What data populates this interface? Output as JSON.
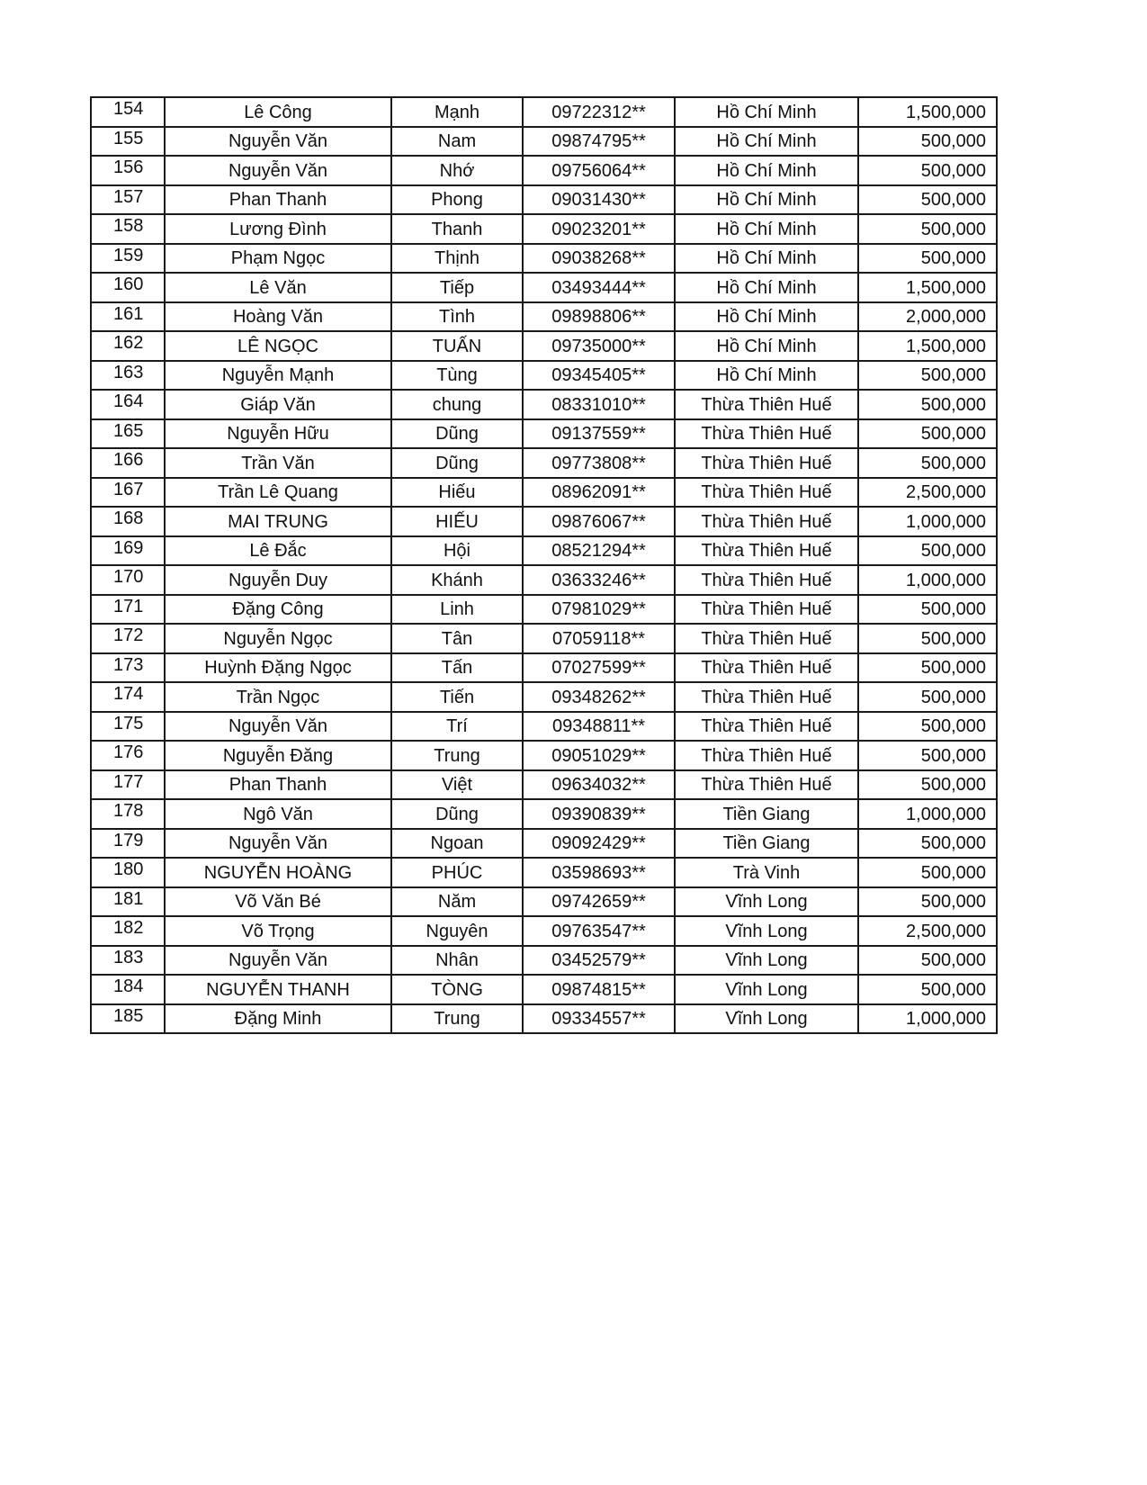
{
  "rows": [
    [
      "154",
      "Lê Công",
      "Mạnh",
      "09722312**",
      "Hồ Chí Minh",
      "1,500,000"
    ],
    [
      "155",
      "Nguyễn Văn",
      "Nam",
      "09874795**",
      "Hồ Chí Minh",
      "500,000"
    ],
    [
      "156",
      "Nguyễn Văn",
      "Nhớ",
      "09756064**",
      "Hồ Chí Minh",
      "500,000"
    ],
    [
      "157",
      "Phan Thanh",
      "Phong",
      "09031430**",
      "Hồ Chí Minh",
      "500,000"
    ],
    [
      "158",
      "Lương  Đình",
      "Thanh",
      "09023201**",
      "Hồ Chí Minh",
      "500,000"
    ],
    [
      "159",
      "Phạm Ngọc",
      "Thịnh",
      "09038268**",
      "Hồ Chí Minh",
      "500,000"
    ],
    [
      "160",
      "Lê Văn",
      "Tiếp",
      "03493444**",
      "Hồ Chí Minh",
      "1,500,000"
    ],
    [
      "161",
      "Hoàng Văn",
      "Tình",
      "09898806**",
      "Hồ Chí Minh",
      "2,000,000"
    ],
    [
      "162",
      "LÊ NGỌC",
      "TUẤN",
      "09735000**",
      "Hồ Chí Minh",
      "1,500,000"
    ],
    [
      "163",
      "Nguyễn Mạnh",
      "Tùng",
      "09345405**",
      "Hồ Chí Minh",
      "500,000"
    ],
    [
      "164",
      "Giáp Văn",
      "chung",
      "08331010**",
      "Thừa Thiên Huế",
      "500,000"
    ],
    [
      "165",
      "Nguyễn Hữu",
      "Dũng",
      "09137559**",
      "Thừa Thiên Huế",
      "500,000"
    ],
    [
      "166",
      "Trần Văn",
      "Dũng",
      "09773808**",
      "Thừa Thiên Huế",
      "500,000"
    ],
    [
      "167",
      "Trần Lê Quang",
      "Hiếu",
      "08962091**",
      "Thừa Thiên Huế",
      "2,500,000"
    ],
    [
      "168",
      "MAI TRUNG",
      "HIẾU",
      "09876067**",
      "Thừa Thiên Huế",
      "1,000,000"
    ],
    [
      "169",
      "Lê Đắc",
      "Hội",
      "08521294**",
      "Thừa Thiên Huế",
      "500,000"
    ],
    [
      "170",
      "Nguyễn Duy",
      "Khánh",
      "03633246**",
      "Thừa Thiên Huế",
      "1,000,000"
    ],
    [
      "171",
      "Đặng Công",
      "Linh",
      "07981029**",
      "Thừa Thiên Huế",
      "500,000"
    ],
    [
      "172",
      "Nguyễn Ngọc",
      "Tân",
      "07059118**",
      "Thừa Thiên Huế",
      "500,000"
    ],
    [
      "173",
      "Huỳnh Đặng Ngọc",
      "Tấn",
      "07027599**",
      "Thừa Thiên Huế",
      "500,000"
    ],
    [
      "174",
      "Trần Ngọc",
      "Tiến",
      "09348262**",
      "Thừa Thiên Huế",
      "500,000"
    ],
    [
      "175",
      "Nguyễn Văn",
      "Trí",
      "09348811**",
      "Thừa Thiên Huế",
      "500,000"
    ],
    [
      "176",
      "Nguyễn Đăng",
      "Trung",
      "09051029**",
      "Thừa Thiên Huế",
      "500,000"
    ],
    [
      "177",
      "Phan Thanh",
      "Việt",
      "09634032**",
      "Thừa Thiên Huế",
      "500,000"
    ],
    [
      "178",
      "Ngô Văn",
      "Dũng",
      "09390839**",
      "Tiền Giang",
      "1,000,000"
    ],
    [
      "179",
      "Nguyễn Văn",
      "Ngoan",
      "09092429**",
      "Tiền Giang",
      "500,000"
    ],
    [
      "180",
      "NGUYỄN HOÀNG",
      "PHÚC",
      "03598693**",
      "Trà Vinh",
      "500,000"
    ],
    [
      "181",
      "Võ Văn Bé",
      "Năm",
      "09742659**",
      "Vĩnh Long",
      "500,000"
    ],
    [
      "182",
      "Võ Trọng",
      "Nguyên",
      "09763547**",
      "Vĩnh Long",
      "2,500,000"
    ],
    [
      "183",
      "Nguyễn Văn",
      "Nhân",
      "03452579**",
      "Vĩnh Long",
      "500,000"
    ],
    [
      "184",
      "NGUYỄN THANH",
      "TÒNG",
      "09874815**",
      "Vĩnh Long",
      "500,000"
    ],
    [
      "185",
      "Đặng Minh",
      "Trung",
      "09334557**",
      "Vĩnh Long",
      "1,000,000"
    ]
  ]
}
